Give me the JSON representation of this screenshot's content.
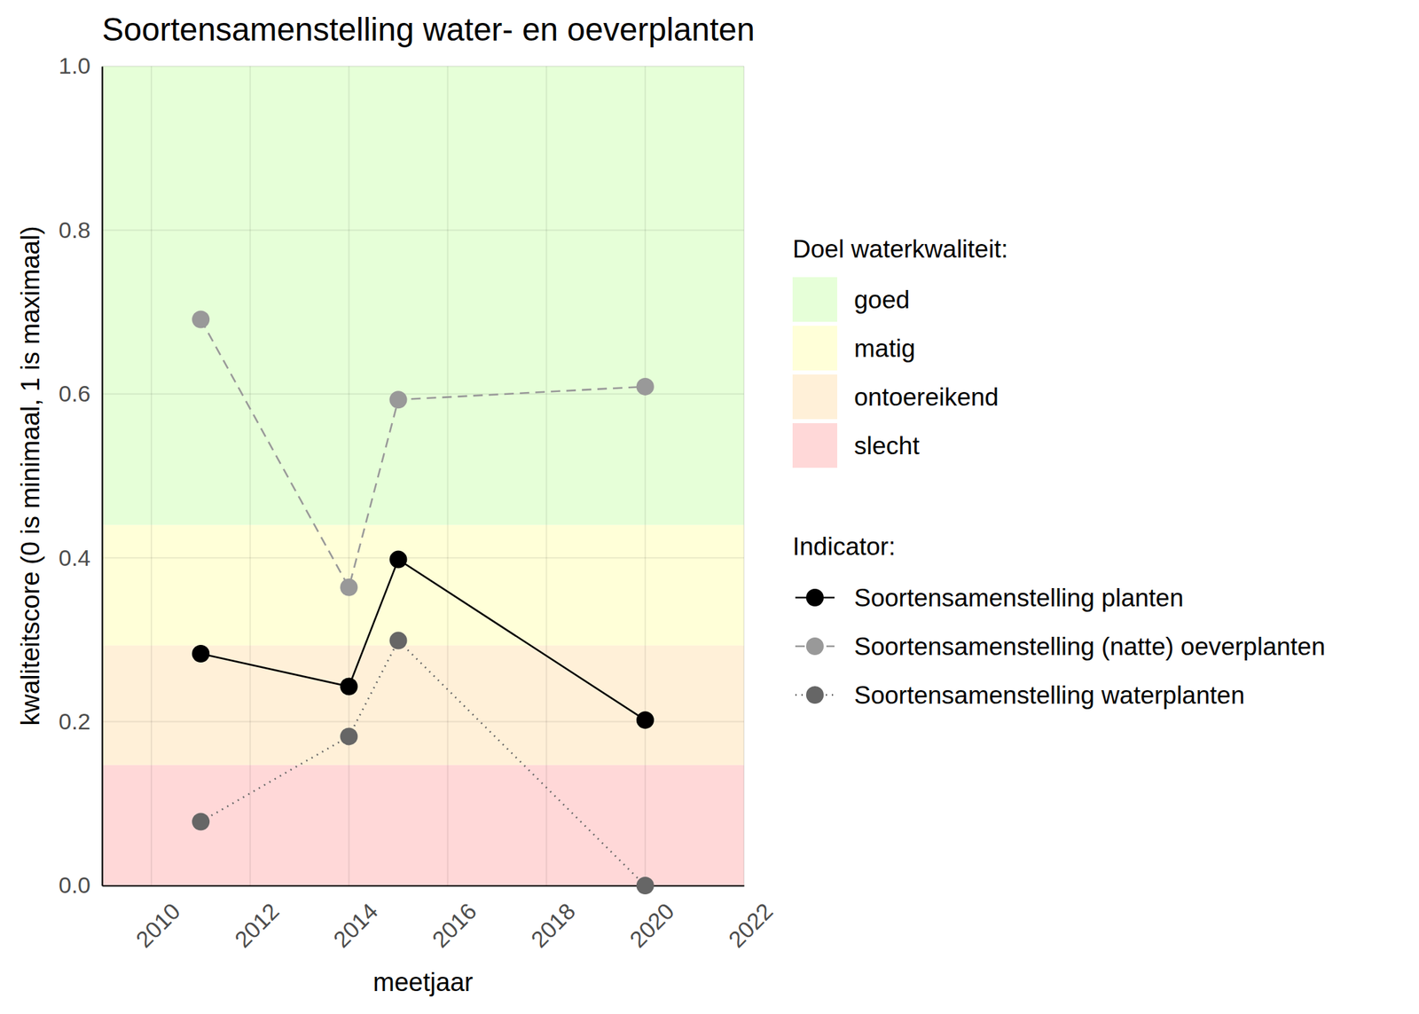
{
  "chart_data": {
    "type": "line",
    "title": "Soortensamenstelling water- en oeverplanten",
    "x_label": "meetjaar",
    "y_label": "kwaliteitscore (0 is minimaal, 1 is maximaal)",
    "x": [
      2011,
      2014,
      2015,
      2020
    ],
    "series": [
      {
        "name": "Soortensamenstelling planten",
        "color": "#000000",
        "line_style": "solid",
        "marker": "circle",
        "values": [
          0.283,
          0.243,
          0.398,
          0.202
        ]
      },
      {
        "name": "Soortensamenstelling (natte) oeverplanten",
        "color": "#999999",
        "line_style": "dashed",
        "marker": "circle",
        "values": [
          0.691,
          0.364,
          0.593,
          0.609
        ]
      },
      {
        "name": "Soortensamenstelling waterplanten",
        "color": "#666666",
        "line_style": "dotted",
        "marker": "circle",
        "values": [
          0.078,
          0.182,
          0.299,
          0.0
        ]
      }
    ],
    "xlim": [
      2009,
      2022
    ],
    "xticks": [
      2010,
      2012,
      2014,
      2016,
      2018,
      2020,
      2022
    ],
    "ylim": [
      0,
      1
    ],
    "yticks": [
      {
        "value": 0,
        "label": "0.0"
      },
      0.2,
      0.4,
      0.6,
      0.8,
      {
        "value": 1,
        "label": "1.0"
      }
    ],
    "grid": true,
    "legend": "right",
    "legend_title": "Indicator:",
    "bands_title": "Doel waterkwaliteit:",
    "bands": [
      {
        "name": "goed",
        "color": "#e6ffd8",
        "from": 0.44,
        "to": 1.0
      },
      {
        "name": "matig",
        "color": "#ffffd8",
        "from": 0.293,
        "to": 0.44
      },
      {
        "name": "ontoereikend",
        "color": "#fff0d8",
        "from": 0.147,
        "to": 0.293
      },
      {
        "name": "slecht",
        "color": "#ffd8d8",
        "from": 0.0,
        "to": 0.147
      }
    ]
  }
}
